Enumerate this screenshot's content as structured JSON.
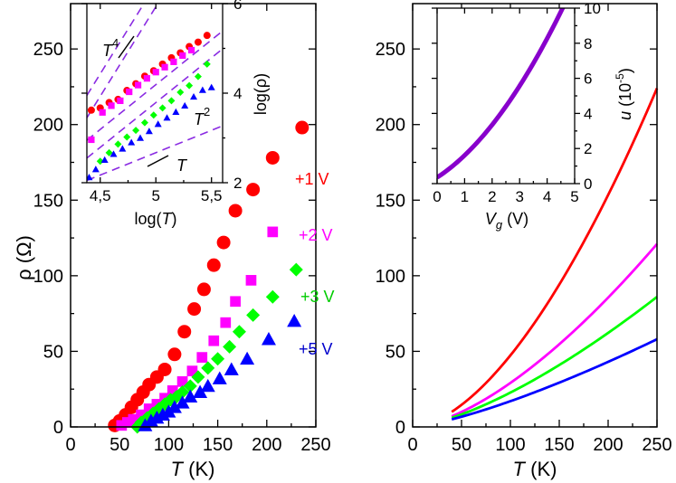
{
  "chart_data": [
    {
      "id": "left",
      "type": "scatter",
      "xlabel": "T (K)",
      "ylabel": "ρ (Ω)",
      "xlim": [
        0,
        250
      ],
      "ylim": [
        0,
        280
      ],
      "xticks": [
        0,
        50,
        100,
        150,
        200,
        250
      ],
      "yticks": [
        0,
        50,
        100,
        150,
        200,
        250
      ],
      "series": [
        {
          "name": "+1 V",
          "color": "#ff0000",
          "marker": "circle",
          "x": [
            45,
            50,
            56,
            62,
            68,
            74,
            80,
            88,
            96,
            106,
            116,
            126,
            136,
            146,
            156,
            168,
            186,
            206,
            236
          ],
          "y": [
            1,
            4,
            8,
            13,
            18,
            23,
            28,
            33,
            38,
            48,
            63,
            78,
            91,
            107,
            122,
            143,
            157,
            178,
            198
          ]
        },
        {
          "name": "+2 V",
          "color": "#ff00ff",
          "marker": "square",
          "x": [
            52,
            58,
            64,
            72,
            80,
            88,
            96,
            104,
            114,
            124,
            134,
            146,
            158,
            168,
            184,
            206
          ],
          "y": [
            1,
            3,
            5,
            8,
            12,
            15,
            19,
            24,
            30,
            37,
            46,
            57,
            69,
            83,
            97,
            129
          ]
        },
        {
          "name": "+3 V",
          "color": "#00ff00",
          "marker": "diamond",
          "x": [
            68,
            72,
            78,
            84,
            90,
            96,
            102,
            108,
            114,
            122,
            130,
            140,
            150,
            162,
            172,
            186,
            206,
            230
          ],
          "y": [
            0,
            3,
            6,
            9,
            12,
            15,
            18,
            20,
            23,
            27,
            33,
            39,
            45,
            53,
            63,
            74,
            86,
            104
          ]
        },
        {
          "name": "+5 V",
          "color": "#0000ff",
          "marker": "triangle",
          "x": [
            76,
            82,
            88,
            94,
            100,
            106,
            114,
            122,
            132,
            140,
            152,
            164,
            180,
            202,
            228
          ],
          "y": [
            1,
            4,
            6,
            8,
            10,
            13,
            16,
            20,
            23,
            27,
            32,
            38,
            45,
            58,
            70
          ]
        }
      ],
      "labels": [
        "+1 V",
        "+2 V",
        "+3 V",
        "+5 V"
      ],
      "inset": {
        "type": "scatter",
        "xlabel": "log(T)",
        "ylabel": "log(ρ)",
        "xlim": [
          4.38,
          5.6
        ],
        "ylim": [
          2,
          6
        ],
        "xticks": [
          "4,5",
          "5",
          "5,5"
        ],
        "xtick_values": [
          4.5,
          5.0,
          5.5
        ],
        "yticks": [
          "2",
          "4",
          "6"
        ],
        "ytick_values": [
          2,
          4,
          6
        ],
        "reference_lines": [
          {
            "label": "T4",
            "slope": 4,
            "points": [
              [
                4.38,
                3.9
              ],
              [
                5.6,
                8.78
              ]
            ]
          },
          {
            "label": "T2",
            "slope": 2,
            "points": [
              [
                4.38,
                3.0
              ],
              [
                5.6,
                5.44
              ]
            ]
          },
          {
            "label": "T",
            "slope": 1,
            "points": [
              [
                4.38,
                2.1
              ],
              [
                5.6,
                3.32
              ]
            ]
          }
        ],
        "series": [
          {
            "name": "+1 V",
            "color": "#ff0000",
            "marker": "circle",
            "x": [
              4.42,
              4.5,
              4.58,
              4.66,
              4.74,
              4.82,
              4.9,
              4.98,
              5.06,
              5.14,
              5.22,
              5.3,
              5.38,
              5.46
            ],
            "y": [
              3.62,
              3.67,
              3.79,
              3.86,
              4.06,
              4.21,
              4.38,
              4.5,
              4.65,
              4.79,
              4.9,
              5.04,
              5.14,
              5.29
            ]
          },
          {
            "name": "+2 V",
            "color": "#ff00ff",
            "marker": "square",
            "x": [
              4.42,
              4.52,
              4.6,
              4.68,
              4.76,
              4.84,
              4.92,
              5.0,
              5.08,
              5.16,
              5.24,
              5.32
            ],
            "y": [
              2.96,
              3.57,
              3.72,
              3.83,
              4.03,
              4.18,
              4.33,
              4.47,
              4.58,
              4.7,
              4.84,
              4.96
            ]
          },
          {
            "name": "+3 V",
            "color": "#00ff00",
            "marker": "diamond",
            "x": [
              4.5,
              4.58,
              4.66,
              4.74,
              4.82,
              4.9,
              4.98,
              5.06,
              5.14,
              5.22,
              5.3,
              5.38,
              5.46
            ],
            "y": [
              2.48,
              2.67,
              2.86,
              3.02,
              3.17,
              3.34,
              3.51,
              3.67,
              3.83,
              4.02,
              4.17,
              4.37,
              4.65
            ]
          },
          {
            "name": "+5 V",
            "color": "#0000ff",
            "marker": "triangle",
            "x": [
              4.4,
              4.46,
              4.54,
              4.62,
              4.7,
              4.78,
              4.86,
              4.94,
              5.02,
              5.1,
              5.18,
              5.26,
              5.34,
              5.42,
              5.5
            ],
            "y": [
              2.12,
              2.3,
              2.51,
              2.64,
              2.76,
              2.9,
              3.0,
              3.15,
              3.31,
              3.45,
              3.58,
              3.72,
              3.92,
              4.07,
              4.13
            ]
          }
        ]
      }
    },
    {
      "id": "right",
      "type": "line",
      "xlabel": "T (K)",
      "ylabel": "",
      "xlim": [
        0,
        250
      ],
      "ylim": [
        0,
        280
      ],
      "xticks": [
        0,
        50,
        100,
        150,
        200,
        250
      ],
      "yticks": [
        0,
        50,
        100,
        150,
        200,
        250
      ],
      "series": [
        {
          "name": "+1 V",
          "color": "#ff0000",
          "x": [
            40,
            250
          ],
          "y0": 10,
          "y1": 224
        },
        {
          "name": "+2 V",
          "color": "#ff00ff",
          "x": [
            40,
            250
          ],
          "y0": 7,
          "y1": 121
        },
        {
          "name": "+3 V",
          "color": "#00ff00",
          "x": [
            40,
            250
          ],
          "y0": 6,
          "y1": 86
        },
        {
          "name": "+5 V",
          "color": "#0000ff",
          "x": [
            40,
            250
          ],
          "y0": 5,
          "y1": 58
        }
      ],
      "inset": {
        "type": "line",
        "xlabel": "Vg (V)",
        "ylabel": "u (10-5)",
        "xlim": [
          0,
          5
        ],
        "ylim": [
          0,
          10
        ],
        "xticks": [
          0,
          1,
          2,
          3,
          4,
          5
        ],
        "yticks": [
          0,
          2,
          4,
          6,
          8,
          10
        ],
        "color": "#8800cc",
        "curve": {
          "y_at_0": 0.35,
          "linear": 1.02,
          "quadratic": 0.24,
          "x_end": 4.8
        }
      }
    }
  ],
  "text": {
    "left_xlabel_T": "T",
    "left_xlabel_unit": " (K)",
    "left_ylabel": "ρ (Ω)",
    "right_xlabel_T": "T",
    "right_xlabel_unit": " (K)",
    "inset_left_xlabel_pre": "log(",
    "inset_left_xlabel_T": "T",
    "inset_left_xlabel_post": ")",
    "inset_left_ylabel": "log(ρ)",
    "t4_T": "T",
    "t4_exp": "4",
    "t2_T": "T",
    "t2_exp": "2",
    "t1_T": "T",
    "inset_right_xlabel_V": "V",
    "inset_right_xlabel_sub": "g",
    "inset_right_xlabel_unit": " (V)",
    "inset_right_ylabel_u": "u",
    "inset_right_ylabel_pre": " (10",
    "inset_right_ylabel_exp": "-5",
    "inset_right_ylabel_post": ")"
  }
}
